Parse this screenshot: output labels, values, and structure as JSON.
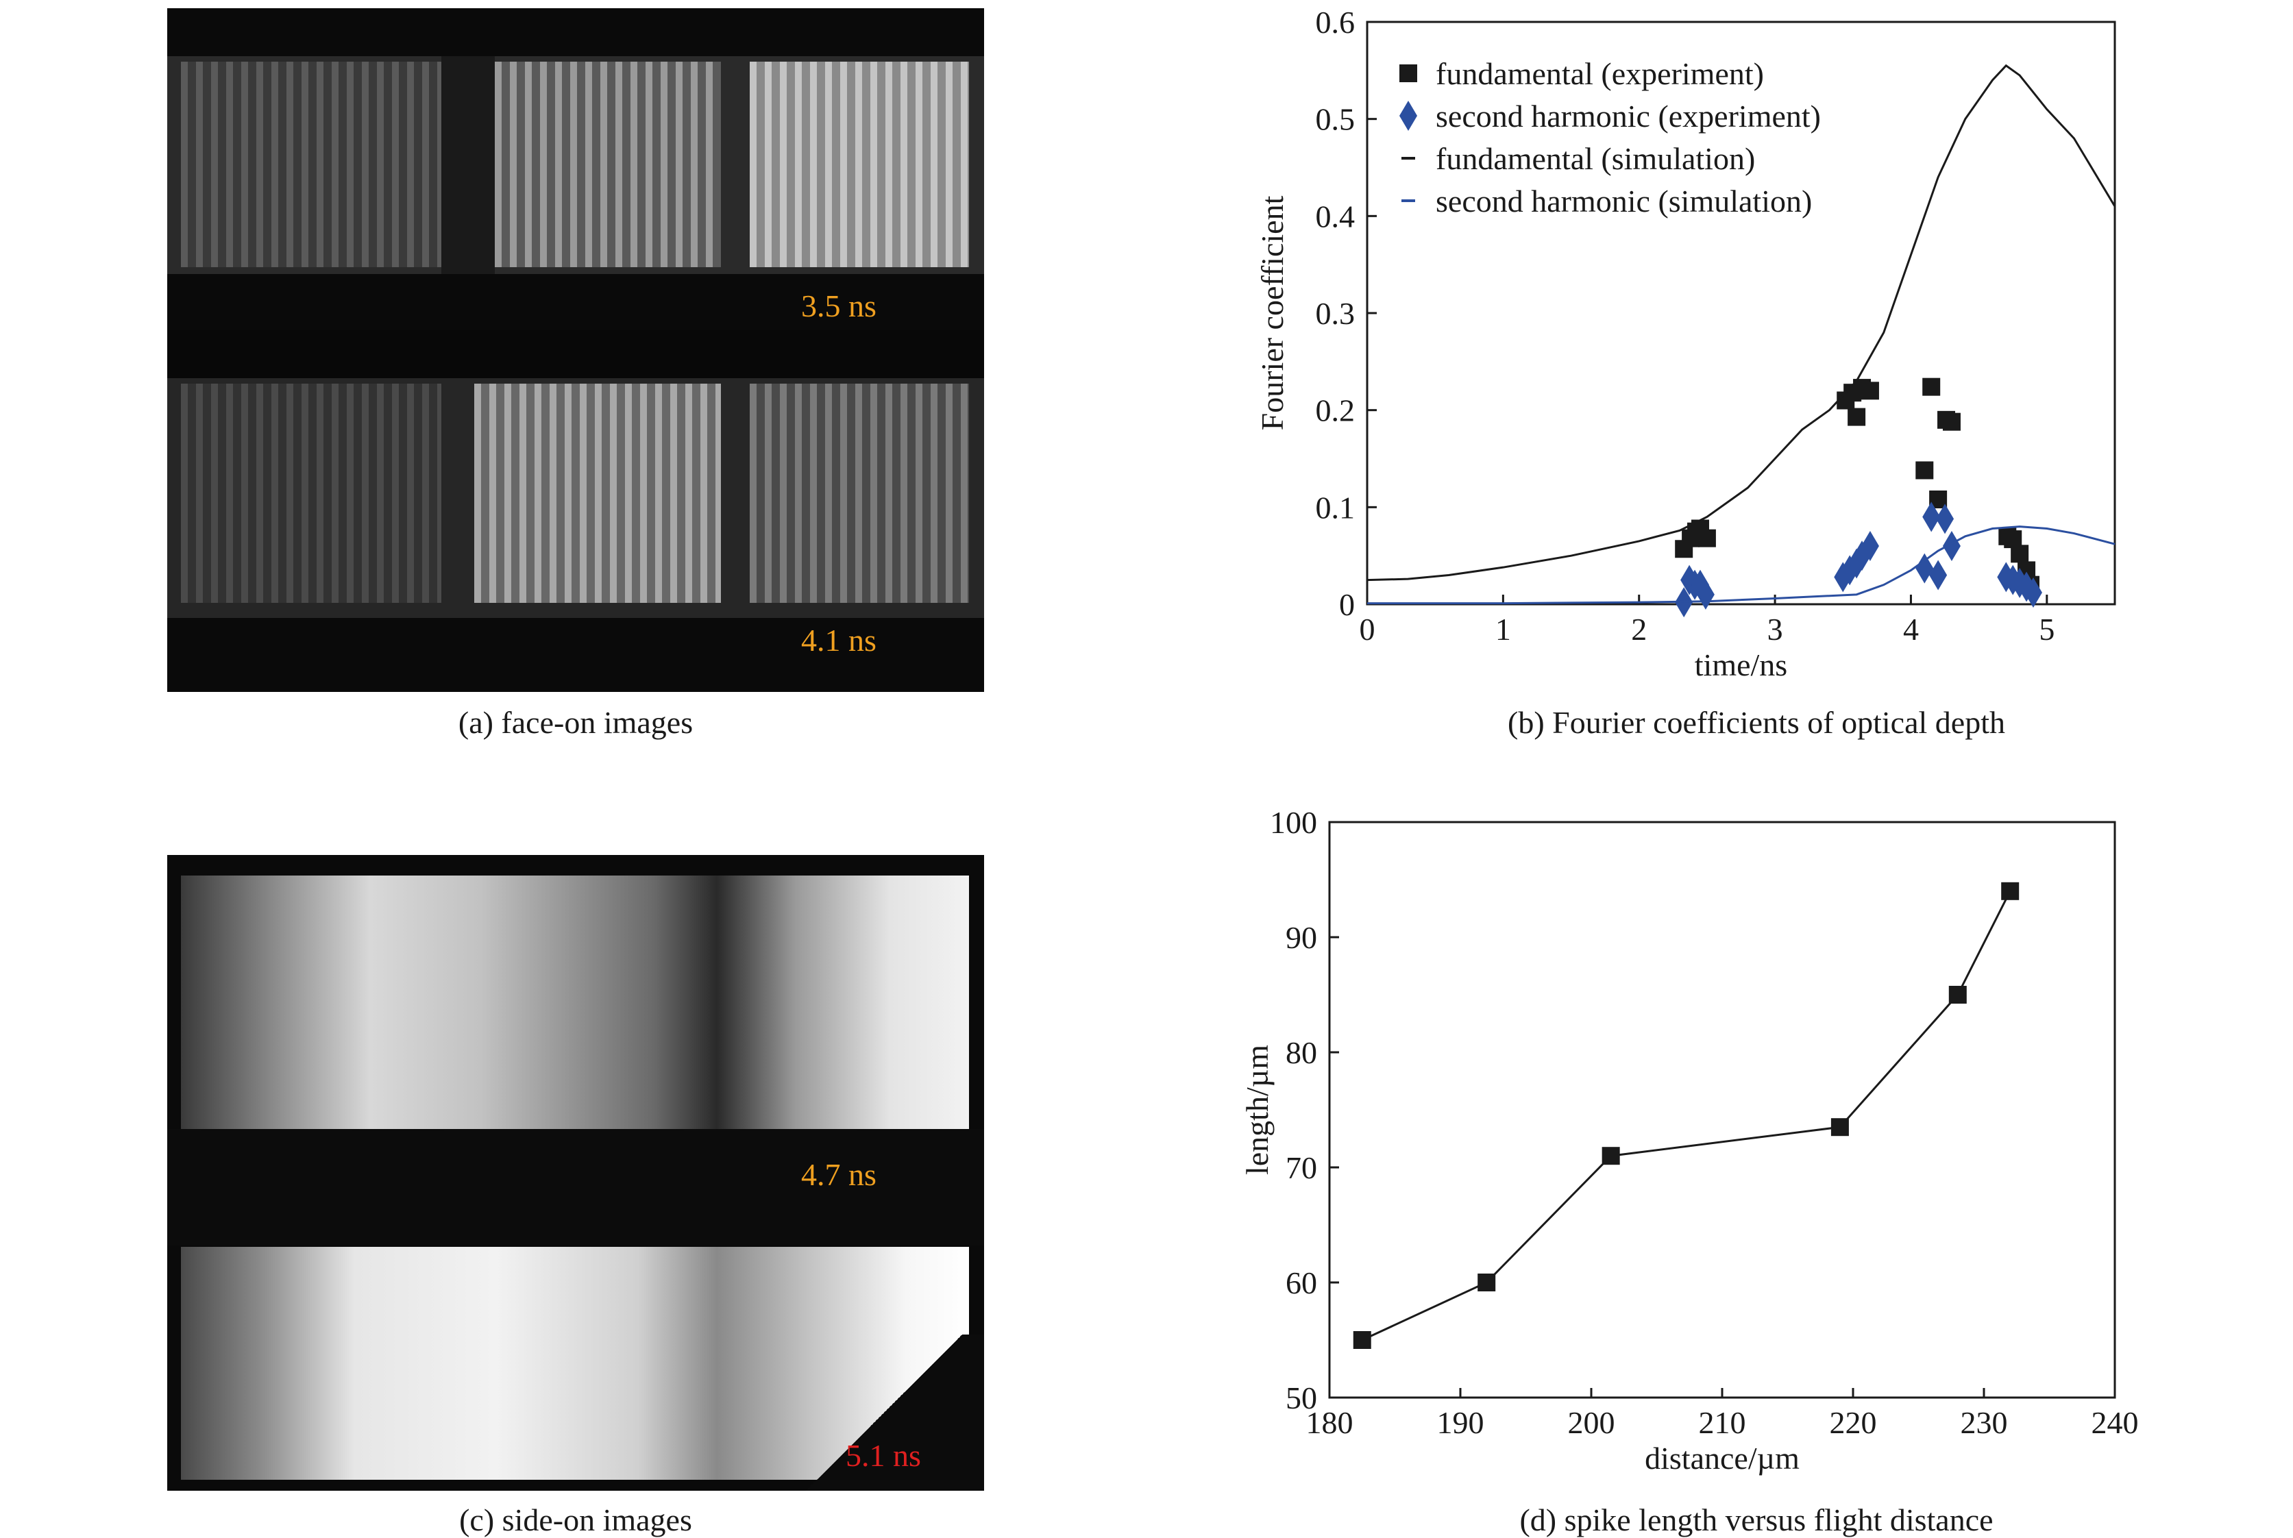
{
  "panels": {
    "a": {
      "caption": "(a) face-on images",
      "labels": [
        "3.5 ns",
        "4.1 ns"
      ],
      "label_color": "#f0a020"
    },
    "b": {
      "caption": "(b) Fourier coefficients of optical depth"
    },
    "c": {
      "caption": "(c) side-on images",
      "labels": [
        "4.7 ns",
        "5.1 ns"
      ],
      "label_colors": [
        "#f0a020",
        "#e02020"
      ]
    },
    "d": {
      "caption": "(d) spike length versus flight distance"
    }
  },
  "chart_data": [
    {
      "type": "scatter",
      "title": "",
      "xlabel": "time/ns",
      "ylabel": "Fourier coefficient",
      "xlim": [
        0,
        5.5
      ],
      "ylim": [
        0,
        0.6
      ],
      "xticks": [
        0,
        1,
        2,
        3,
        4,
        5
      ],
      "yticks": [
        0,
        0.1,
        0.2,
        0.3,
        0.4,
        0.5,
        0.6
      ],
      "legend_position": "top-left",
      "series": [
        {
          "name": "fundamental (experiment)",
          "marker": "square",
          "color": "#1a1a1a",
          "x": [
            2.33,
            2.38,
            2.42,
            2.45,
            2.5,
            3.52,
            3.57,
            3.6,
            3.64,
            3.7,
            4.1,
            4.15,
            4.2,
            4.26,
            4.3,
            4.71,
            4.75,
            4.8,
            4.85,
            4.88
          ],
          "y": [
            0.057,
            0.068,
            0.075,
            0.078,
            0.068,
            0.21,
            0.218,
            0.193,
            0.223,
            0.22,
            0.138,
            0.224,
            0.108,
            0.19,
            0.188,
            0.07,
            0.067,
            0.052,
            0.035,
            0.02
          ]
        },
        {
          "name": "second harmonic (experiment)",
          "marker": "diamond",
          "color": "#2b4fa0",
          "x": [
            2.33,
            2.37,
            2.41,
            2.45,
            2.49,
            3.5,
            3.55,
            3.6,
            3.64,
            3.7,
            4.1,
            4.15,
            4.2,
            4.25,
            4.3,
            4.7,
            4.75,
            4.8,
            4.85,
            4.9
          ],
          "y": [
            0.002,
            0.025,
            0.02,
            0.02,
            0.01,
            0.028,
            0.035,
            0.042,
            0.05,
            0.06,
            0.037,
            0.09,
            0.03,
            0.088,
            0.06,
            0.028,
            0.025,
            0.022,
            0.018,
            0.012
          ]
        },
        {
          "name": "fundamental (simulation)",
          "marker": "line",
          "color": "#1a1a1a",
          "x": [
            0,
            0.3,
            0.6,
            1.0,
            1.5,
            2.0,
            2.3,
            2.5,
            2.8,
            3.0,
            3.2,
            3.4,
            3.6,
            3.8,
            4.0,
            4.2,
            4.4,
            4.6,
            4.7,
            4.8,
            5.0,
            5.2,
            5.5
          ],
          "y": [
            0.025,
            0.026,
            0.03,
            0.038,
            0.05,
            0.065,
            0.076,
            0.09,
            0.12,
            0.15,
            0.18,
            0.2,
            0.23,
            0.28,
            0.36,
            0.44,
            0.5,
            0.54,
            0.555,
            0.545,
            0.51,
            0.48,
            0.41
          ]
        },
        {
          "name": "second harmonic (simulation)",
          "marker": "line",
          "color": "#2b4fa0",
          "x": [
            0,
            1.0,
            2.0,
            2.5,
            3.0,
            3.3,
            3.6,
            3.8,
            4.0,
            4.2,
            4.4,
            4.6,
            4.8,
            5.0,
            5.2,
            5.5
          ],
          "y": [
            0.001,
            0.001,
            0.002,
            0.003,
            0.006,
            0.008,
            0.01,
            0.02,
            0.035,
            0.055,
            0.07,
            0.078,
            0.08,
            0.078,
            0.073,
            0.062
          ]
        }
      ]
    },
    {
      "type": "line",
      "title": "",
      "xlabel": "distance/µm",
      "ylabel": "length/µm",
      "xlim": [
        180,
        240
      ],
      "ylim": [
        50,
        100
      ],
      "xticks": [
        180,
        190,
        200,
        210,
        220,
        230,
        240
      ],
      "yticks": [
        50,
        60,
        70,
        80,
        90,
        100
      ],
      "series": [
        {
          "name": "",
          "marker": "square",
          "color": "#1a1a1a",
          "x": [
            182.5,
            192,
            201.5,
            219,
            228,
            232
          ],
          "y": [
            55,
            60,
            71,
            73.5,
            85,
            94
          ]
        }
      ]
    }
  ]
}
